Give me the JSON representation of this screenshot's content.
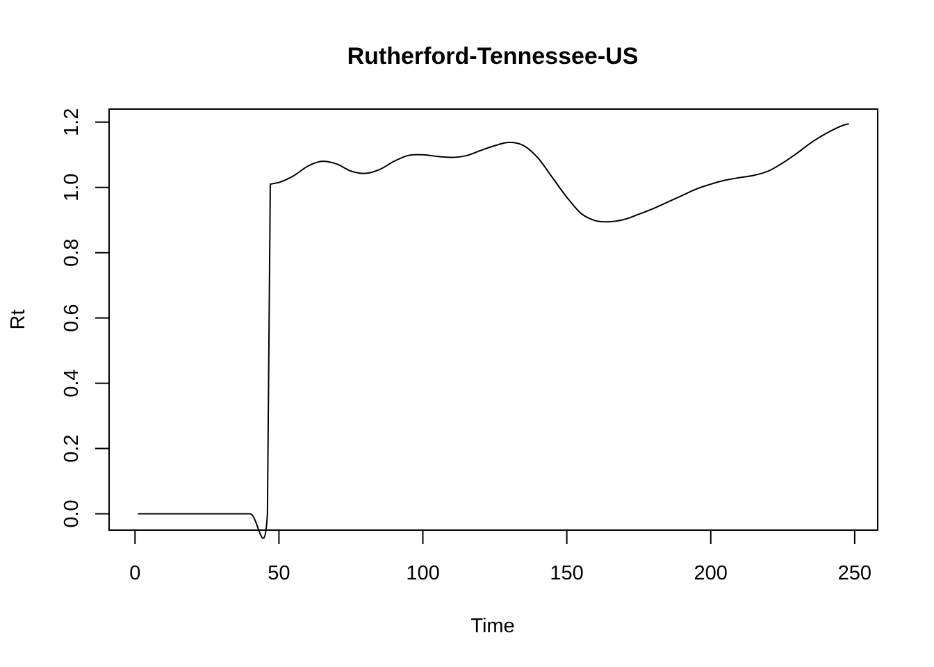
{
  "chart_data": {
    "type": "line",
    "title": "Rutherford-Tennessee-US",
    "xlabel": "Time",
    "ylabel": "Rt",
    "xlim": [
      -9,
      258
    ],
    "ylim": [
      -0.05,
      1.24
    ],
    "xticks": [
      0,
      50,
      100,
      150,
      200,
      250
    ],
    "yticks": [
      0.0,
      0.2,
      0.4,
      0.6,
      0.8,
      1.0,
      1.2
    ],
    "xtick_labels": [
      "0",
      "50",
      "100",
      "150",
      "200",
      "250"
    ],
    "ytick_labels": [
      "0.0",
      "0.2",
      "0.4",
      "0.6",
      "0.8",
      "1.0",
      "1.2"
    ],
    "grid": false,
    "legend": "none",
    "series": [
      {
        "x": [
          1,
          10,
          20,
          30,
          40,
          46,
          47,
          50,
          55,
          60,
          65,
          70,
          75,
          80,
          85,
          90,
          95,
          100,
          105,
          110,
          115,
          120,
          125,
          130,
          135,
          140,
          145,
          150,
          155,
          160,
          165,
          170,
          175,
          180,
          185,
          190,
          195,
          200,
          205,
          210,
          215,
          220,
          225,
          230,
          235,
          240,
          245,
          248
        ],
        "y": [
          0.0,
          0.0,
          0.0,
          0.0,
          0.0,
          0.0,
          1.01,
          1.015,
          1.035,
          1.065,
          1.08,
          1.072,
          1.05,
          1.043,
          1.055,
          1.08,
          1.098,
          1.1,
          1.095,
          1.092,
          1.097,
          1.113,
          1.128,
          1.138,
          1.128,
          1.09,
          1.03,
          0.97,
          0.92,
          0.898,
          0.895,
          0.902,
          0.918,
          0.935,
          0.955,
          0.975,
          0.995,
          1.01,
          1.022,
          1.03,
          1.037,
          1.05,
          1.075,
          1.105,
          1.138,
          1.165,
          1.187,
          1.195
        ]
      }
    ]
  }
}
